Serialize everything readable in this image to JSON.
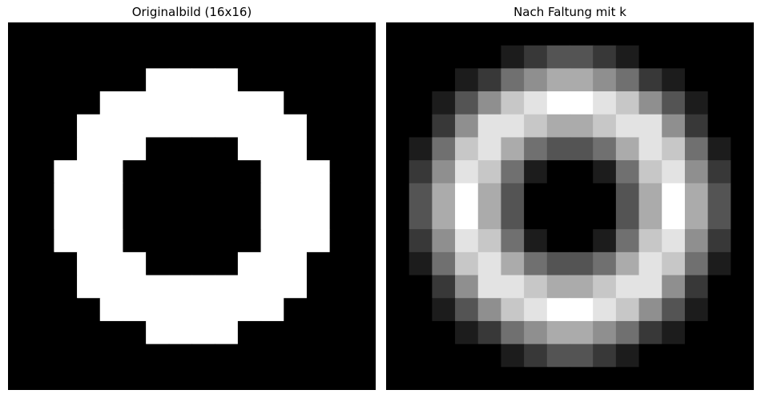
{
  "chart_data": [
    {
      "type": "heatmap",
      "title": "Originalbild (16x16)",
      "colormap": "gray",
      "vmin": 0,
      "vmax": 1,
      "rows": 16,
      "cols": 16,
      "grid": false,
      "axes_visible": false,
      "values": [
        [
          0,
          0,
          0,
          0,
          0,
          0,
          0,
          0,
          0,
          0,
          0,
          0,
          0,
          0,
          0,
          0
        ],
        [
          0,
          0,
          0,
          0,
          0,
          0,
          0,
          0,
          0,
          0,
          0,
          0,
          0,
          0,
          0,
          0
        ],
        [
          0,
          0,
          0,
          0,
          0,
          0,
          1,
          1,
          1,
          1,
          0,
          0,
          0,
          0,
          0,
          0
        ],
        [
          0,
          0,
          0,
          0,
          1,
          1,
          1,
          1,
          1,
          1,
          1,
          1,
          0,
          0,
          0,
          0
        ],
        [
          0,
          0,
          0,
          1,
          1,
          1,
          1,
          1,
          1,
          1,
          1,
          1,
          1,
          0,
          0,
          0
        ],
        [
          0,
          0,
          0,
          1,
          1,
          1,
          0,
          0,
          0,
          0,
          1,
          1,
          1,
          0,
          0,
          0
        ],
        [
          0,
          0,
          1,
          1,
          1,
          0,
          0,
          0,
          0,
          0,
          0,
          1,
          1,
          1,
          0,
          0
        ],
        [
          0,
          0,
          1,
          1,
          1,
          0,
          0,
          0,
          0,
          0,
          0,
          1,
          1,
          1,
          0,
          0
        ],
        [
          0,
          0,
          1,
          1,
          1,
          0,
          0,
          0,
          0,
          0,
          0,
          1,
          1,
          1,
          0,
          0
        ],
        [
          0,
          0,
          1,
          1,
          1,
          0,
          0,
          0,
          0,
          0,
          0,
          1,
          1,
          1,
          0,
          0
        ],
        [
          0,
          0,
          0,
          1,
          1,
          1,
          0,
          0,
          0,
          0,
          1,
          1,
          1,
          0,
          0,
          0
        ],
        [
          0,
          0,
          0,
          1,
          1,
          1,
          1,
          1,
          1,
          1,
          1,
          1,
          1,
          0,
          0,
          0
        ],
        [
          0,
          0,
          0,
          0,
          1,
          1,
          1,
          1,
          1,
          1,
          1,
          1,
          0,
          0,
          0,
          0
        ],
        [
          0,
          0,
          0,
          0,
          0,
          0,
          1,
          1,
          1,
          1,
          0,
          0,
          0,
          0,
          0,
          0
        ],
        [
          0,
          0,
          0,
          0,
          0,
          0,
          0,
          0,
          0,
          0,
          0,
          0,
          0,
          0,
          0,
          0
        ],
        [
          0,
          0,
          0,
          0,
          0,
          0,
          0,
          0,
          0,
          0,
          0,
          0,
          0,
          0,
          0,
          0
        ]
      ]
    },
    {
      "type": "heatmap",
      "title": "Nach Faltung mit k",
      "colormap": "gray",
      "vmin": 0,
      "vmax": 1,
      "rows": 16,
      "cols": 16,
      "grid": false,
      "axes_visible": false,
      "values": [
        [
          0,
          0,
          0,
          0,
          0,
          0,
          0,
          0,
          0,
          0,
          0,
          0,
          0,
          0,
          0,
          0
        ],
        [
          0,
          0,
          0,
          0,
          0,
          0.11,
          0.22,
          0.33,
          0.33,
          0.22,
          0.11,
          0,
          0,
          0,
          0,
          0
        ],
        [
          0,
          0,
          0,
          0.11,
          0.22,
          0.44,
          0.56,
          0.67,
          0.67,
          0.56,
          0.44,
          0.22,
          0.11,
          0,
          0,
          0
        ],
        [
          0,
          0,
          0.11,
          0.33,
          0.56,
          0.78,
          0.89,
          1,
          1,
          0.89,
          0.78,
          0.56,
          0.33,
          0.11,
          0,
          0
        ],
        [
          0,
          0,
          0.22,
          0.56,
          0.89,
          0.89,
          0.78,
          0.67,
          0.67,
          0.78,
          0.89,
          0.89,
          0.56,
          0.22,
          0,
          0
        ],
        [
          0,
          0.11,
          0.44,
          0.78,
          0.89,
          0.67,
          0.44,
          0.33,
          0.33,
          0.44,
          0.67,
          0.89,
          0.78,
          0.44,
          0.11,
          0
        ],
        [
          0,
          0.22,
          0.56,
          0.89,
          0.78,
          0.44,
          0.11,
          0,
          0,
          0.11,
          0.44,
          0.78,
          0.89,
          0.56,
          0.22,
          0
        ],
        [
          0,
          0.33,
          0.67,
          1,
          0.67,
          0.33,
          0,
          0,
          0,
          0,
          0.33,
          0.67,
          1,
          0.67,
          0.33,
          0
        ],
        [
          0,
          0.33,
          0.67,
          1,
          0.67,
          0.33,
          0,
          0,
          0,
          0,
          0.33,
          0.67,
          1,
          0.67,
          0.33,
          0
        ],
        [
          0,
          0.22,
          0.56,
          0.89,
          0.78,
          0.44,
          0.11,
          0,
          0,
          0.11,
          0.44,
          0.78,
          0.89,
          0.56,
          0.22,
          0
        ],
        [
          0,
          0.11,
          0.44,
          0.78,
          0.89,
          0.67,
          0.44,
          0.33,
          0.33,
          0.44,
          0.67,
          0.89,
          0.78,
          0.44,
          0.11,
          0
        ],
        [
          0,
          0,
          0.22,
          0.56,
          0.89,
          0.89,
          0.78,
          0.67,
          0.67,
          0.78,
          0.89,
          0.89,
          0.56,
          0.22,
          0,
          0
        ],
        [
          0,
          0,
          0.11,
          0.33,
          0.56,
          0.78,
          0.89,
          1,
          1,
          0.89,
          0.78,
          0.56,
          0.33,
          0.11,
          0,
          0
        ],
        [
          0,
          0,
          0,
          0.11,
          0.22,
          0.44,
          0.56,
          0.67,
          0.67,
          0.56,
          0.44,
          0.22,
          0.11,
          0,
          0,
          0
        ],
        [
          0,
          0,
          0,
          0,
          0,
          0.11,
          0.22,
          0.33,
          0.33,
          0.22,
          0.11,
          0,
          0,
          0,
          0,
          0
        ],
        [
          0,
          0,
          0,
          0,
          0,
          0,
          0,
          0,
          0,
          0,
          0,
          0,
          0,
          0,
          0,
          0
        ]
      ]
    }
  ]
}
